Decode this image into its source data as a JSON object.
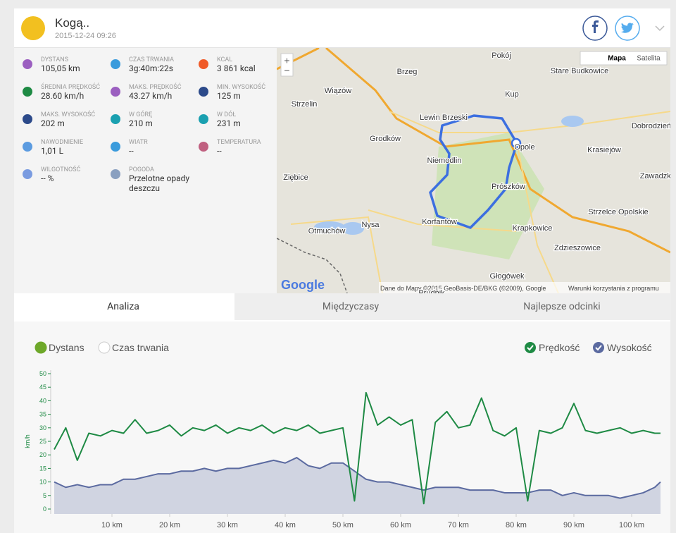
{
  "header": {
    "title": "Kogą..",
    "date": "2015-12-24 09:26"
  },
  "stats": [
    {
      "label": "DYSTANS",
      "value": "105,05 km"
    },
    {
      "label": "CZAS TRWANIA",
      "value": "3g:40m:22s"
    },
    {
      "label": "KCAL",
      "value": "3 861 kcal"
    },
    {
      "label": "ŚREDNIA PRĘDKOŚĆ",
      "value": "28.60 km/h"
    },
    {
      "label": "MAKS. PRĘDKOŚĆ",
      "value": "43.27 km/h"
    },
    {
      "label": "MIN. WYSOKOŚĆ",
      "value": "125 m"
    },
    {
      "label": "MAKS. WYSOKOŚĆ",
      "value": "202 m"
    },
    {
      "label": "W GÓRĘ",
      "value": "210 m"
    },
    {
      "label": "W DÓŁ",
      "value": "231 m"
    },
    {
      "label": "NAWODNIENIE",
      "value": "1,01 L"
    },
    {
      "label": "WIATR",
      "value": "--"
    },
    {
      "label": "TEMPERATURA",
      "value": "--"
    },
    {
      "label": "WILGOTNOŚĆ",
      "value": "-- %"
    },
    {
      "label": "POGODA",
      "value": "Przelotne opady deszczu"
    }
  ],
  "map": {
    "labels": [
      "Pokój",
      "Brzeg",
      "Stare Budkowice",
      "Wiązów",
      "Kup",
      "Strzelin",
      "Lewin Brzeski",
      "Dobrodzień",
      "Grodków",
      "Opole",
      "Krasiejów",
      "Niemodlin",
      "Ziębice",
      "Zawadzkie",
      "Prószków",
      "Strzelce Opolskie",
      "Nysa",
      "Korfantów",
      "Otmuchów",
      "Krapkowice",
      "Zdzieszowice",
      "Głogówek",
      "Prudnik"
    ],
    "zoom_in": "+",
    "zoom_out": "−",
    "map_button": "Mapa",
    "satellite_button": "Satelita",
    "logo": "Google",
    "attribution": "Dane do Mapy ©2015 GeoBasis-DE/BKG (©2009), Google",
    "terms": "Warunki korzystania z programu"
  },
  "tabs": [
    "Analiza",
    "Międzyczasy",
    "Najlepsze odcinki"
  ],
  "x_axis_options": [
    "Dystans",
    "Czas trwania"
  ],
  "chart_data": {
    "type": "line",
    "y_label": "km/h",
    "x": [
      0,
      2,
      4,
      6,
      8,
      10,
      12,
      14,
      16,
      18,
      20,
      22,
      24,
      26,
      28,
      30,
      32,
      34,
      36,
      38,
      40,
      42,
      44,
      46,
      48,
      50,
      52,
      54,
      56,
      58,
      60,
      62,
      64,
      66,
      68,
      70,
      72,
      74,
      76,
      78,
      80,
      82,
      84,
      86,
      88,
      90,
      92,
      94,
      96,
      98,
      100,
      102,
      104,
      105
    ],
    "series": [
      {
        "name": "Prędkość",
        "color": "#1e8a44",
        "values": [
          22,
          30,
          18,
          28,
          27,
          29,
          28,
          33,
          28,
          29,
          31,
          27,
          30,
          29,
          31,
          28,
          30,
          29,
          31,
          28,
          30,
          29,
          31,
          28,
          29,
          30,
          3,
          43,
          31,
          34,
          31,
          33,
          2,
          32,
          36,
          30,
          31,
          41,
          29,
          27,
          30,
          3,
          29,
          28,
          30,
          39,
          29,
          28,
          29,
          30,
          28,
          29,
          28,
          28
        ]
      },
      {
        "name": "Wysokość",
        "color": "#5b6aa0",
        "area": true,
        "values": [
          10,
          8,
          9,
          8,
          9,
          9,
          11,
          11,
          12,
          13,
          13,
          14,
          14,
          15,
          14,
          15,
          15,
          16,
          17,
          18,
          17,
          19,
          16,
          15,
          17,
          17,
          14,
          11,
          10,
          10,
          9,
          8,
          7,
          8,
          8,
          8,
          7,
          7,
          7,
          6,
          6,
          6,
          7,
          7,
          5,
          6,
          5,
          5,
          5,
          4,
          5,
          6,
          8,
          10
        ]
      }
    ],
    "xlim": [
      0,
      105
    ],
    "xticks": [
      {
        "value": 10,
        "label": "10 km"
      },
      {
        "value": 20,
        "label": "20 km"
      },
      {
        "value": 30,
        "label": "30 km"
      },
      {
        "value": 40,
        "label": "40 km"
      },
      {
        "value": 50,
        "label": "50 km"
      },
      {
        "value": 60,
        "label": "60 km"
      },
      {
        "value": 70,
        "label": "70 km"
      },
      {
        "value": 80,
        "label": "80 km"
      },
      {
        "value": 90,
        "label": "90 km"
      },
      {
        "value": 100,
        "label": "100 km"
      }
    ],
    "ylim": [
      0,
      50
    ],
    "yticks": [
      0,
      5,
      10,
      15,
      20,
      25,
      30,
      35,
      40,
      45,
      50
    ]
  }
}
